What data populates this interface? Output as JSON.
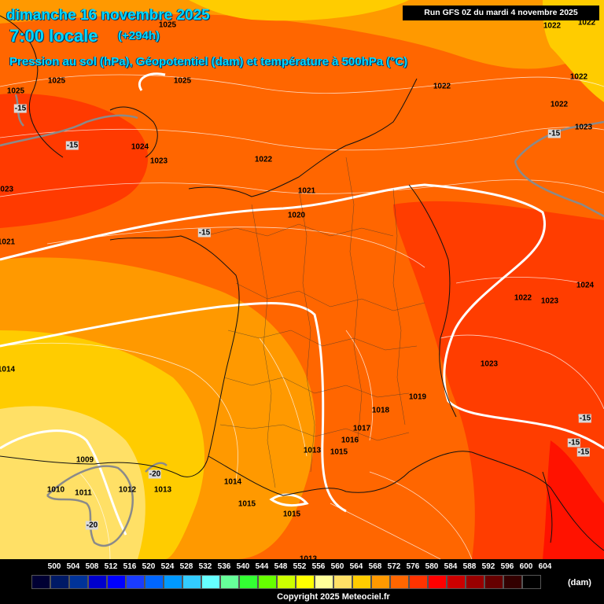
{
  "header": {
    "date": "dimanche 16 novembre 2025",
    "time": "7:00 locale",
    "offset": "(+294h)",
    "subtitle": "Pression au sol (hPa), Géopotentiel (dam) et température à 500hPa (°C)",
    "run": "Run GFS 0Z du mardi 4 novembre 2025"
  },
  "pressure_labels": [
    "1025",
    "1025",
    "1025",
    "1025",
    "1023",
    "1024",
    "1023",
    "1022",
    "1022",
    "1022",
    "1022",
    "1022",
    "1022",
    "1023",
    "1021",
    "1020",
    "1021",
    "1014",
    "1024",
    "1022",
    "1023",
    "1023",
    "1019",
    "1018",
    "1017",
    "1016",
    "1015",
    "1013",
    "1014",
    "1015",
    "1015",
    "1009",
    "1010",
    "1011",
    "1012",
    "1013",
    "1013"
  ],
  "temperature_labels": [
    "-15",
    "-15",
    "-15",
    "-15",
    "-15",
    "-15",
    "-15",
    "-20",
    "-20"
  ],
  "legend": {
    "values": [
      "500",
      "504",
      "508",
      "512",
      "516",
      "520",
      "524",
      "528",
      "532",
      "536",
      "540",
      "544",
      "548",
      "552",
      "556",
      "560",
      "564",
      "568",
      "572",
      "576",
      "580",
      "584",
      "588",
      "592",
      "596",
      "600",
      "604"
    ],
    "colors": [
      "#000033",
      "#001a66",
      "#003399",
      "#0000cc",
      "#0000ff",
      "#1a3cff",
      "#0066ff",
      "#0099ff",
      "#33ccff",
      "#66ffff",
      "#66ff99",
      "#33ff33",
      "#66ff00",
      "#ccff00",
      "#ffff00",
      "#ffff99",
      "#ffe066",
      "#ffcc00",
      "#ff9900",
      "#ff6600",
      "#ff3300",
      "#ff0000",
      "#cc0000",
      "#990000",
      "#660000",
      "#330000",
      "#000000"
    ],
    "unit": "(dam)",
    "copyright": "Copyright 2025 Meteociel.fr"
  }
}
